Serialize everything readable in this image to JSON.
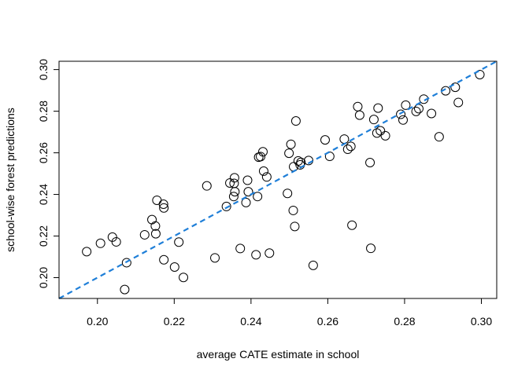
{
  "chart_data": {
    "type": "scatter",
    "title": "",
    "xlabel": "average CATE estimate in school",
    "ylabel": "school-wise forest predictions",
    "xlim": [
      0.19,
      0.304
    ],
    "ylim": [
      0.19,
      0.304
    ],
    "x_ticks": [
      0.2,
      0.22,
      0.24,
      0.26,
      0.28,
      0.3
    ],
    "y_ticks": [
      0.2,
      0.22,
      0.24,
      0.26,
      0.28,
      0.3
    ],
    "x_tick_labels": [
      "0.20",
      "0.22",
      "0.24",
      "0.26",
      "0.28",
      "0.30"
    ],
    "y_tick_labels": [
      "0.20",
      "0.22",
      "0.24",
      "0.26",
      "0.28",
      "0.30"
    ],
    "grid": false,
    "legend": "none",
    "reference_line": {
      "slope": 1,
      "intercept": 0,
      "color": "#1f7fd8",
      "style": "dashed"
    },
    "marker": {
      "shape": "open-circle",
      "color": "#000000"
    },
    "points": [
      [
        0.1972,
        0.2125
      ],
      [
        0.2008,
        0.2165
      ],
      [
        0.2039,
        0.2195
      ],
      [
        0.2049,
        0.2172
      ],
      [
        0.2071,
        0.1943
      ],
      [
        0.2076,
        0.2072
      ],
      [
        0.2123,
        0.2206
      ],
      [
        0.2142,
        0.2279
      ],
      [
        0.2151,
        0.2248
      ],
      [
        0.2152,
        0.2211
      ],
      [
        0.2155,
        0.2372
      ],
      [
        0.2172,
        0.2353
      ],
      [
        0.2173,
        0.2335
      ],
      [
        0.2173,
        0.2086
      ],
      [
        0.2201,
        0.2051
      ],
      [
        0.2212,
        0.2171
      ],
      [
        0.2224,
        0.2001
      ],
      [
        0.2285,
        0.2441
      ],
      [
        0.2306,
        0.2095
      ],
      [
        0.2336,
        0.2342
      ],
      [
        0.2345,
        0.2455
      ],
      [
        0.2355,
        0.239
      ],
      [
        0.2356,
        0.2453
      ],
      [
        0.2357,
        0.248
      ],
      [
        0.2358,
        0.2413
      ],
      [
        0.2372,
        0.214
      ],
      [
        0.2387,
        0.2361
      ],
      [
        0.2391,
        0.2468
      ],
      [
        0.2393,
        0.2413
      ],
      [
        0.2413,
        0.211
      ],
      [
        0.2417,
        0.239
      ],
      [
        0.242,
        0.2579
      ],
      [
        0.2425,
        0.2582
      ],
      [
        0.2431,
        0.2605
      ],
      [
        0.2433,
        0.2512
      ],
      [
        0.2441,
        0.2484
      ],
      [
        0.2448,
        0.2118
      ],
      [
        0.2495,
        0.2405
      ],
      [
        0.2499,
        0.2598
      ],
      [
        0.2504,
        0.2641
      ],
      [
        0.251,
        0.2323
      ],
      [
        0.2511,
        0.2533
      ],
      [
        0.2514,
        0.2246
      ],
      [
        0.2517,
        0.2753
      ],
      [
        0.2523,
        0.2561
      ],
      [
        0.2528,
        0.2542
      ],
      [
        0.253,
        0.2554
      ],
      [
        0.255,
        0.2563
      ],
      [
        0.2562,
        0.2059
      ],
      [
        0.2593,
        0.2662
      ],
      [
        0.2605,
        0.2583
      ],
      [
        0.2643,
        0.2666
      ],
      [
        0.2652,
        0.2617
      ],
      [
        0.266,
        0.2631
      ],
      [
        0.2663,
        0.2252
      ],
      [
        0.2678,
        0.2822
      ],
      [
        0.2683,
        0.2781
      ],
      [
        0.271,
        0.2553
      ],
      [
        0.2712,
        0.2141
      ],
      [
        0.272,
        0.276
      ],
      [
        0.2728,
        0.2695
      ],
      [
        0.2731,
        0.2815
      ],
      [
        0.2737,
        0.2706
      ],
      [
        0.275,
        0.2682
      ],
      [
        0.279,
        0.2785
      ],
      [
        0.2796,
        0.2758
      ],
      [
        0.2803,
        0.2829
      ],
      [
        0.283,
        0.2799
      ],
      [
        0.2837,
        0.2812
      ],
      [
        0.285,
        0.2858
      ],
      [
        0.287,
        0.2789
      ],
      [
        0.289,
        0.2677
      ],
      [
        0.2907,
        0.2898
      ],
      [
        0.2932,
        0.2915
      ],
      [
        0.294,
        0.2842
      ],
      [
        0.2996,
        0.2976
      ]
    ]
  }
}
